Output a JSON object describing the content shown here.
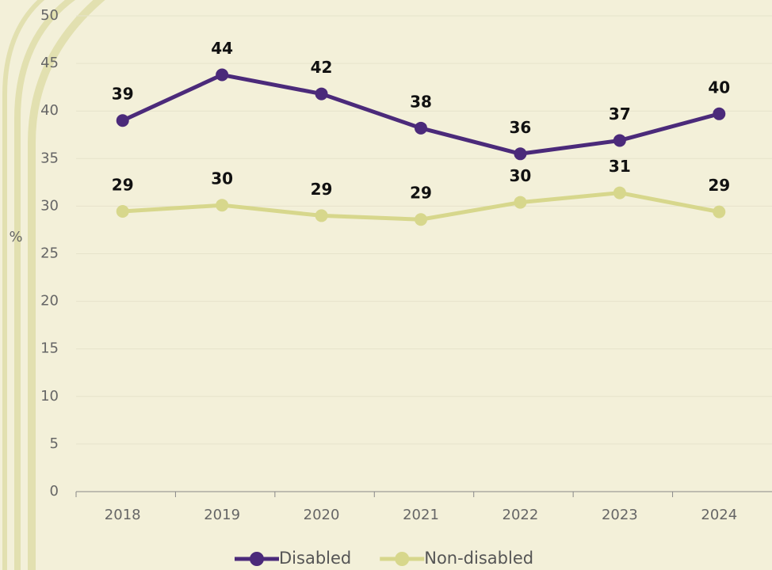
{
  "chart_data": {
    "type": "line",
    "y_label": "%",
    "categories": [
      "2018",
      "2019",
      "2020",
      "2021",
      "2022",
      "2023",
      "2024"
    ],
    "series": [
      {
        "name": "Disabled",
        "color": "#4b2a7a",
        "values": [
          39,
          43.8,
          41.8,
          38.2,
          35.5,
          36.9,
          39.7
        ],
        "value_labels": [
          "39",
          "44",
          "42",
          "38",
          "36",
          "37",
          "40"
        ]
      },
      {
        "name": "Non-disabled",
        "color": "#d7d78c",
        "values": [
          29.45,
          30.1,
          29,
          28.6,
          30.4,
          31.4,
          29.4
        ],
        "value_labels": [
          "29",
          "30",
          "29",
          "29",
          "30",
          "31",
          "29"
        ]
      }
    ],
    "ylim": [
      0,
      50
    ],
    "yticks": [
      0,
      5,
      10,
      15,
      20,
      25,
      30,
      35,
      40,
      45,
      50
    ],
    "grid": true
  }
}
